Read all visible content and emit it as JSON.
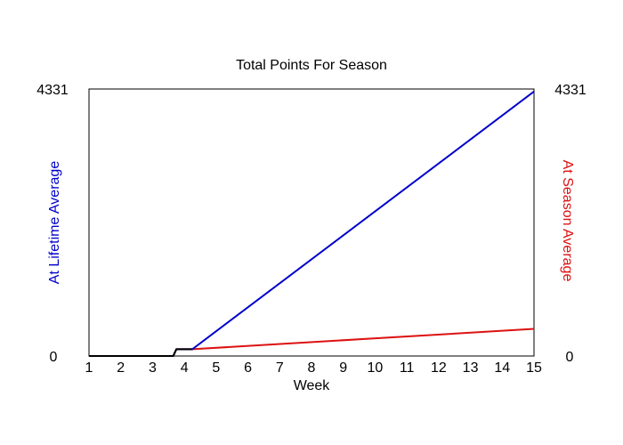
{
  "chart_data": {
    "type": "line",
    "title": "Total Points For Season",
    "xlabel": "Week",
    "ylabel_left": "At Lifetime Average",
    "ylabel_right": "At Season Average",
    "x_ticks": [
      "1",
      "2",
      "3",
      "4",
      "5",
      "6",
      "7",
      "8",
      "9",
      "10",
      "11",
      "12",
      "13",
      "14",
      "15"
    ],
    "xlim": [
      1,
      15
    ],
    "ylim": [
      0,
      4331
    ],
    "y_tick_labels": {
      "min": "0",
      "max": "4331"
    },
    "grid": false,
    "legend": "none",
    "series": [
      {
        "name": "At Lifetime Average",
        "color": "#0000cc",
        "x": [
          1,
          3.65,
          3.75,
          4.25,
          15
        ],
        "y": [
          0,
          0,
          110,
          110,
          4290
        ]
      },
      {
        "name": "At Season Average",
        "color": "#dd1111",
        "x": [
          1,
          3.65,
          3.75,
          4.25,
          15
        ],
        "y": [
          0,
          0,
          110,
          110,
          440
        ]
      }
    ],
    "shared_segment_color": "#000000"
  }
}
